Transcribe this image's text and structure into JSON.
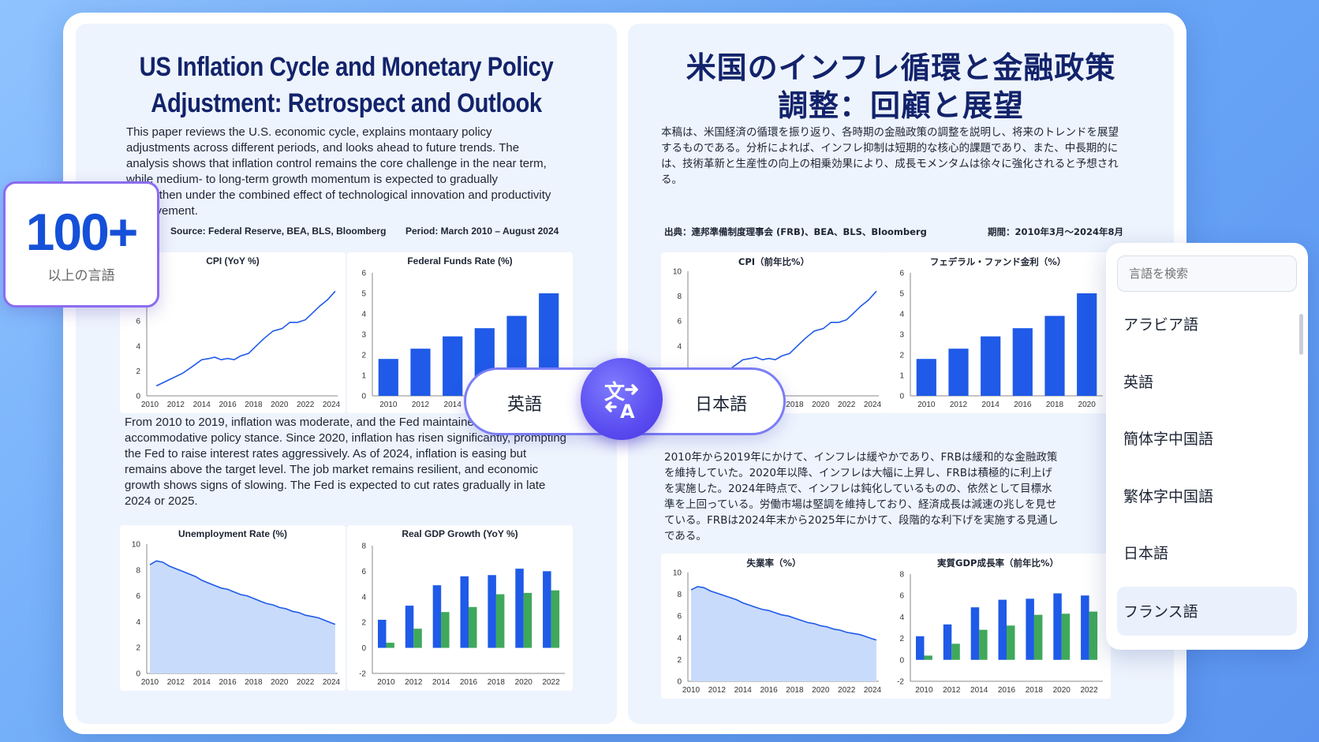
{
  "badge": {
    "number": "100+",
    "label": "以上の言語"
  },
  "translator": {
    "from": "英語",
    "to": "日本語",
    "swap_icon": "translate-icon"
  },
  "language_menu": {
    "search_placeholder": "言語を検索",
    "items": [
      "アラビア語",
      "英語",
      "簡体字中国語",
      "繁体字中国語",
      "日本語",
      "フランス語"
    ],
    "selected": "フランス語"
  },
  "source_doc": {
    "title_line1": "US Inflation Cycle and Monetary Policy",
    "title_line2": "Adjustment: Retrospect and Outlook",
    "intro": "This paper reviews the U.S. economic cycle, explains montaary policy adjustments across different periods, and looks ahead to future trends. The analysis shows that inflation control remains the core challenge in the near term, while medium- to long-term growth momentum is expected to gradually strengthen under the combined effect of technological innovation and productivity improvement.",
    "source": "Source: Federal Reserve, BEA, BLS, Bloomberg",
    "period": "Period: March 2010 – August 2024",
    "body": "From 2010 to 2019, inflation was moderate, and the Fed maintained an accommodative policy stance. Since 2020, inflation has risen significantly, prompting the Fed to raise interest rates aggressively. As of 2024, inflation is easing but remains above the target level. The job market remains resilient, and economic growth shows signs of slowing. The Fed is expected to cut rates gradually in late 2024 or 2025.",
    "chart_titles": [
      "CPI (YoY %)",
      "Federal Funds Rate (%)",
      "Unemployment Rate (%)",
      "Real GDP Growth (YoY %)"
    ]
  },
  "target_doc": {
    "title_line1": "米国のインフレ循環と金融政策",
    "title_line2": "調整：回顧と展望",
    "intro": "本稿は、米国経済の循環を振り返り、各時期の金融政策の調整を説明し、将来のトレンドを展望するものである。分析によれば、インフレ抑制は短期的な核心的課題であり、また、中長期的には、技術革新と生産性の向上の相乗効果により、成長モメンタムは徐々に強化されると予想される。",
    "source": "出典：連邦準備制度理事会 (FRB)、BEA、BLS、Bloomberg",
    "period": "期間：2010年3月〜2024年8月",
    "body": "2010年から2019年にかけて、インフレは緩やかであり、FRBは緩和的な金融政策を維持していた。2020年以降、インフレは大幅に上昇し、FRBは積極的に利上げを実施した。2024年時点で、インフレは鈍化しているものの、依然として目標水準を上回っている。労働市場は堅調を維持しており、経済成長は減速の兆しを見せている。FRBは2024年末から2025年にかけて、段階的な利下げを実施する見通しである。",
    "chart_titles": [
      "CPI（前年比%）",
      "フェデラル・ファンド金利（%）",
      "失業率（%）",
      "実質GDP成長率（前年比%）"
    ]
  },
  "colors": {
    "blue": "#1f5ae8",
    "green": "#3fa85b",
    "accent": "#5a4cf0"
  },
  "chart_data": [
    {
      "type": "line",
      "x_ticks": [
        "2010",
        "2012",
        "2014",
        "2016",
        "2018",
        "2020",
        "2022",
        "2024"
      ],
      "y_ticks": [
        "0",
        "2",
        "4",
        "6",
        "8",
        "10"
      ],
      "ylim": [
        0,
        10
      ],
      "x": [
        2010.5,
        2011.5,
        2012.5,
        2013.2,
        2014,
        2014.6,
        2015,
        2015.5,
        2016,
        2016.5,
        2017,
        2017.6,
        2018.2,
        2018.8,
        2019.5,
        2020.2,
        2020.8,
        2021.4,
        2022,
        2022.5,
        2023.1,
        2023.7,
        2024.3
      ],
      "values": [
        0.8,
        1.3,
        1.8,
        2.3,
        2.9,
        3.0,
        3.1,
        2.9,
        3.0,
        2.9,
        3.2,
        3.4,
        4.0,
        4.6,
        5.2,
        5.4,
        5.9,
        5.9,
        6.1,
        6.6,
        7.2,
        7.7,
        8.4
      ]
    },
    {
      "type": "bar",
      "categories": [
        "2010",
        "2012",
        "2014",
        "2016",
        "2018",
        "2020"
      ],
      "y_ticks": [
        "0",
        "1",
        "2",
        "3",
        "4",
        "5",
        "6"
      ],
      "ylim": [
        0,
        6
      ],
      "values": [
        1.8,
        2.3,
        2.9,
        3.3,
        3.9,
        5.0
      ]
    },
    {
      "type": "area",
      "x_ticks": [
        "2010",
        "2012",
        "2014",
        "2016",
        "2018",
        "2020",
        "2022",
        "2024"
      ],
      "y_ticks": [
        "0",
        "2",
        "4",
        "6",
        "8",
        "10"
      ],
      "ylim": [
        0,
        10
      ],
      "x": [
        2010,
        2010.5,
        2011,
        2011.5,
        2012,
        2012.5,
        2013,
        2013.5,
        2014,
        2014.5,
        2015,
        2015.5,
        2016,
        2016.5,
        2017,
        2017.5,
        2018,
        2018.5,
        2019,
        2019.5,
        2020,
        2020.5,
        2021,
        2021.5,
        2022,
        2022.5,
        2023,
        2023.5,
        2024,
        2024.3
      ],
      "values": [
        8.4,
        8.7,
        8.6,
        8.3,
        8.1,
        7.9,
        7.7,
        7.5,
        7.2,
        7.0,
        6.8,
        6.6,
        6.5,
        6.3,
        6.1,
        6.0,
        5.8,
        5.6,
        5.4,
        5.3,
        5.1,
        5.0,
        4.8,
        4.7,
        4.5,
        4.4,
        4.3,
        4.1,
        3.9,
        3.8
      ]
    },
    {
      "type": "bar",
      "categories": [
        "2010",
        "2012",
        "2014",
        "2016",
        "2018",
        "2020",
        "2022"
      ],
      "y_ticks": [
        "-2",
        "0",
        "2",
        "4",
        "6",
        "8"
      ],
      "ylim": [
        -2,
        8
      ],
      "series": [
        {
          "values": [
            2.2,
            3.3,
            4.9,
            5.6,
            5.7,
            6.2,
            6.0
          ]
        },
        {
          "values": [
            0.4,
            1.5,
            2.8,
            3.2,
            4.2,
            4.3,
            4.5
          ]
        }
      ]
    }
  ]
}
